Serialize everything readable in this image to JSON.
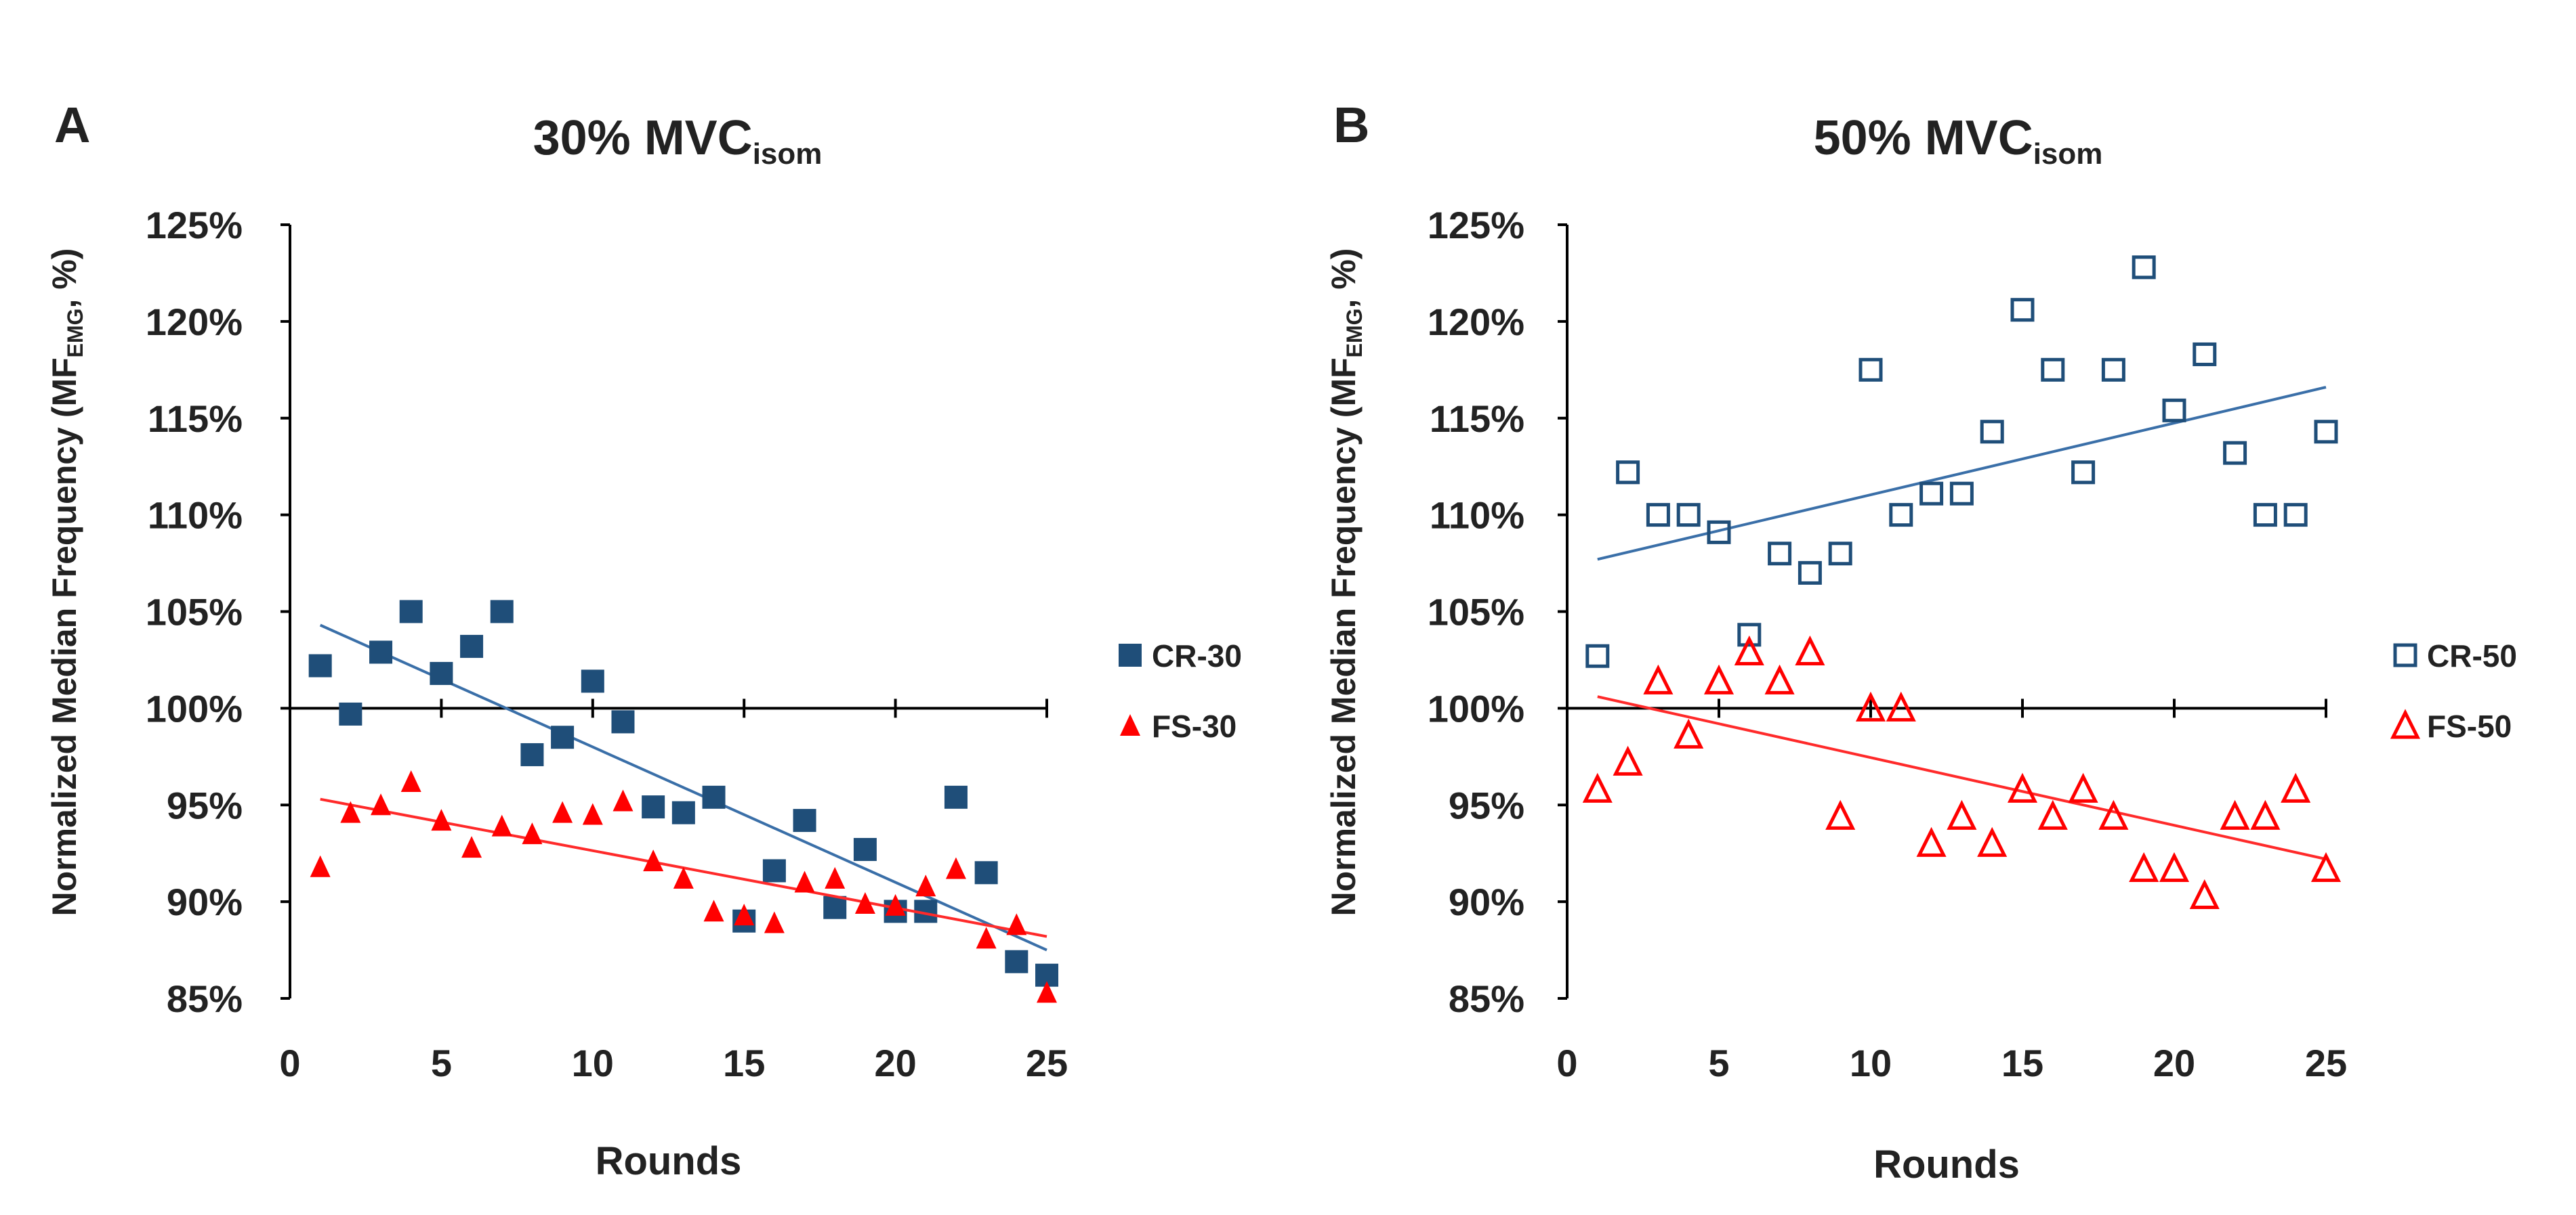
{
  "chart_data": [
    {
      "panel": "A",
      "type": "scatter",
      "title": "30% MVC",
      "title_subscript": "isom",
      "ylabel": "Normalized Median Frequency (MF",
      "ylabel_subscript": "EMG",
      "ylabel_suffix": ", %)",
      "xlabel": "Rounds",
      "xlim": [
        0,
        25
      ],
      "ylim": [
        85,
        125
      ],
      "x_crossing": 100,
      "xticks": [
        0,
        5,
        10,
        15,
        20,
        25
      ],
      "xtick_labels": [
        "0",
        "5",
        "10",
        "15",
        "20",
        "25"
      ],
      "yticks": [
        85,
        90,
        95,
        100,
        105,
        110,
        115,
        120,
        125
      ],
      "ytick_labels": [
        "85%",
        "90%",
        "95%",
        "100%",
        "105%",
        "110%",
        "115%",
        "120%",
        "125%"
      ],
      "legend_position": "right",
      "series": [
        {
          "name": "CR-30",
          "marker": "square-filled",
          "color": "#1f4e79",
          "x": [
            1,
            2,
            3,
            4,
            5,
            6,
            7,
            8,
            9,
            10,
            11,
            12,
            13,
            14,
            15,
            16,
            17,
            18,
            19,
            20,
            21,
            22,
            23,
            24,
            25
          ],
          "y": [
            102.2,
            99.7,
            102.9,
            105.0,
            101.8,
            103.2,
            105.0,
            97.6,
            98.5,
            101.4,
            99.3,
            94.9,
            94.6,
            95.4,
            89.0,
            91.6,
            94.2,
            89.7,
            92.7,
            89.5,
            89.5,
            95.4,
            91.5,
            86.9,
            86.2
          ],
          "trend": [
            104.3,
            87.5
          ]
        },
        {
          "name": "FS-30",
          "marker": "triangle-filled",
          "color": "#ff0000",
          "x": [
            1,
            2,
            3,
            4,
            5,
            6,
            7,
            8,
            9,
            10,
            11,
            12,
            13,
            14,
            15,
            16,
            17,
            18,
            19,
            20,
            21,
            22,
            23,
            24,
            25
          ],
          "y": [
            91.8,
            94.6,
            95.0,
            96.2,
            94.2,
            92.8,
            93.9,
            93.5,
            94.6,
            94.5,
            95.2,
            92.1,
            91.2,
            89.5,
            89.3,
            88.9,
            91.0,
            91.2,
            89.9,
            89.8,
            90.8,
            91.7,
            88.1,
            88.8,
            85.3
          ],
          "trend": [
            95.3,
            88.2
          ]
        }
      ]
    },
    {
      "panel": "B",
      "type": "scatter",
      "title": "50% MVC",
      "title_subscript": "isom",
      "ylabel": "Normalized Median Frequency (MF",
      "ylabel_subscript": "EMG",
      "ylabel_suffix": ", %)",
      "xlabel": "Rounds",
      "xlim": [
        0,
        25
      ],
      "ylim": [
        85,
        125
      ],
      "x_crossing": 100,
      "xticks": [
        0,
        5,
        10,
        15,
        20,
        25
      ],
      "xtick_labels": [
        "0",
        "5",
        "10",
        "15",
        "20",
        "25"
      ],
      "yticks": [
        85,
        90,
        95,
        100,
        105,
        110,
        115,
        120,
        125
      ],
      "ytick_labels": [
        "85%",
        "90%",
        "95%",
        "100%",
        "105%",
        "110%",
        "115%",
        "120%",
        "125%"
      ],
      "legend_position": "right",
      "series": [
        {
          "name": "CR-50",
          "marker": "square-open",
          "color": "#1f4e79",
          "x": [
            1,
            2,
            3,
            4,
            5,
            6,
            7,
            8,
            9,
            10,
            11,
            12,
            13,
            14,
            15,
            16,
            17,
            18,
            19,
            20,
            21,
            22,
            23,
            24,
            25
          ],
          "y": [
            102.7,
            112.2,
            110.0,
            110.0,
            109.1,
            103.8,
            108.0,
            107.0,
            108.0,
            117.5,
            110.0,
            111.1,
            111.1,
            114.3,
            120.6,
            117.5,
            112.2,
            117.5,
            122.8,
            115.4,
            118.3,
            113.2,
            110.0,
            110.0,
            114.3
          ],
          "trend": [
            107.7,
            116.6
          ]
        },
        {
          "name": "FS-50",
          "marker": "triangle-open",
          "color": "#ff0000",
          "x": [
            1,
            2,
            3,
            4,
            5,
            6,
            7,
            8,
            9,
            10,
            11,
            12,
            13,
            14,
            15,
            16,
            17,
            18,
            19,
            20,
            21,
            22,
            23,
            24,
            25
          ],
          "y": [
            95.8,
            97.2,
            101.4,
            98.6,
            101.4,
            102.9,
            101.4,
            102.9,
            94.4,
            100.0,
            100.0,
            93.0,
            94.4,
            93.0,
            95.8,
            94.4,
            95.8,
            94.4,
            91.7,
            91.7,
            90.3,
            94.4,
            94.4,
            95.8,
            91.7
          ],
          "trend": [
            100.6,
            92.2
          ]
        }
      ]
    }
  ]
}
